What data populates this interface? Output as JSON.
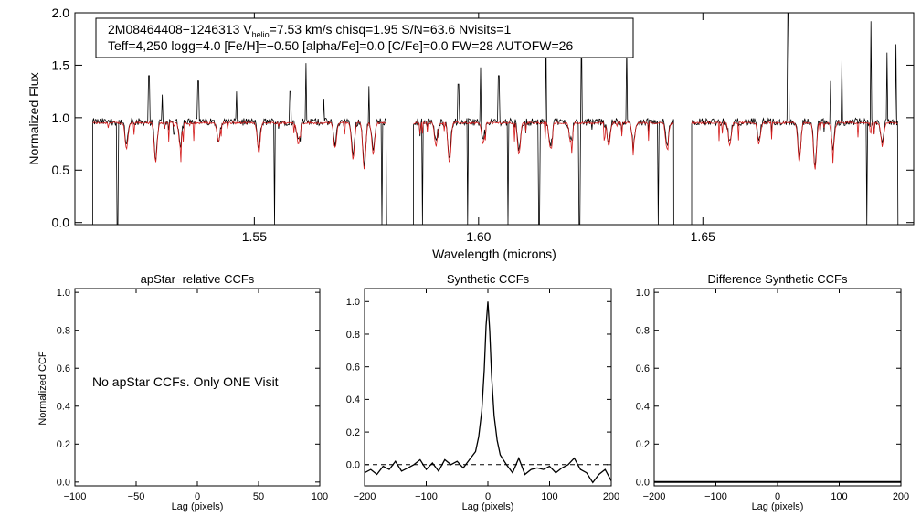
{
  "chart_data": [
    {
      "type": "line",
      "panel": "spectrum",
      "xlabel": "Wavelength (microns)",
      "ylabel": "Normalized Flux",
      "xlim": [
        1.51,
        1.697
      ],
      "ylim": [
        -0.02,
        2.0
      ],
      "xticks": [
        1.55,
        1.6,
        1.65
      ],
      "xtick_labels": [
        "1.55",
        "1.60",
        "1.65"
      ],
      "yticks": [
        0.0,
        0.5,
        1.0,
        1.5,
        2.0
      ],
      "ytick_labels": [
        "0.0",
        "0.5",
        "1.0",
        "1.5",
        "2.0"
      ],
      "info_box": {
        "line1_prefix": "2M08464408−1246313  V",
        "line1_sub": "helio",
        "line1_suffix": "=7.53 km/s  chisq=1.95  S/N=63.6  Nvisits=1",
        "line2": "Teff=4,250 logg=4.0 [Fe/H]=−0.50 [alpha/Fe]=0.0 [C/Fe]=0.0 FW=28 AUTOFW=26"
      },
      "chips": [
        [
          1.514,
          1.5795
        ],
        [
          1.5855,
          1.6435
        ],
        [
          1.6475,
          1.6935
        ]
      ],
      "continuum": 0.96,
      "model_continuum": 0.95,
      "emission_spikes": [
        {
          "x": 1.5265,
          "y": 1.4
        },
        {
          "x": 1.5295,
          "y": 1.22
        },
        {
          "x": 1.5375,
          "y": 1.35
        },
        {
          "x": 1.546,
          "y": 1.25
        },
        {
          "x": 1.558,
          "y": 1.25
        },
        {
          "x": 1.5615,
          "y": 1.52
        },
        {
          "x": 1.5655,
          "y": 1.18
        },
        {
          "x": 1.5755,
          "y": 1.3
        },
        {
          "x": 1.5955,
          "y": 1.32
        },
        {
          "x": 1.6005,
          "y": 1.48
        },
        {
          "x": 1.6045,
          "y": 1.4
        },
        {
          "x": 1.615,
          "y": 1.82
        },
        {
          "x": 1.623,
          "y": 1.9
        },
        {
          "x": 1.633,
          "y": 1.7
        },
        {
          "x": 1.669,
          "y": 2.0
        },
        {
          "x": 1.6785,
          "y": 1.35
        },
        {
          "x": 1.681,
          "y": 1.55
        },
        {
          "x": 1.6875,
          "y": 1.92
        },
        {
          "x": 1.691,
          "y": 1.62
        },
        {
          "x": 1.693,
          "y": 1.7
        }
      ],
      "drop_lines": [
        1.5195,
        1.5545,
        1.5785,
        1.5875,
        1.5975,
        1.6065,
        1.6135,
        1.6225,
        1.64,
        1.6865
      ],
      "absorption_lines": [
        {
          "x": 1.5215,
          "d": 0.25
        },
        {
          "x": 1.528,
          "d": 0.38
        },
        {
          "x": 1.5335,
          "d": 0.22
        },
        {
          "x": 1.542,
          "d": 0.18
        },
        {
          "x": 1.551,
          "d": 0.28
        },
        {
          "x": 1.5598,
          "d": 0.2
        },
        {
          "x": 1.568,
          "d": 0.24
        },
        {
          "x": 1.572,
          "d": 0.35
        },
        {
          "x": 1.5745,
          "d": 0.45
        },
        {
          "x": 1.5765,
          "d": 0.3
        },
        {
          "x": 1.5905,
          "d": 0.22
        },
        {
          "x": 1.5935,
          "d": 0.38
        },
        {
          "x": 1.601,
          "d": 0.2
        },
        {
          "x": 1.609,
          "d": 0.3
        },
        {
          "x": 1.616,
          "d": 0.24
        },
        {
          "x": 1.6205,
          "d": 0.18
        },
        {
          "x": 1.629,
          "d": 0.22
        },
        {
          "x": 1.6345,
          "d": 0.2
        },
        {
          "x": 1.642,
          "d": 0.25
        },
        {
          "x": 1.656,
          "d": 0.22
        },
        {
          "x": 1.6625,
          "d": 0.2
        },
        {
          "x": 1.6715,
          "d": 0.38
        },
        {
          "x": 1.675,
          "d": 0.45
        },
        {
          "x": 1.679,
          "d": 0.25
        },
        {
          "x": 1.69,
          "d": 0.22
        }
      ],
      "series": [
        {
          "name": "observed",
          "color": "#000000"
        },
        {
          "name": "model",
          "color": "#d41c1c"
        }
      ]
    },
    {
      "type": "line",
      "panel": "apstar",
      "title": "apStar−relative CCFs",
      "xlabel": "Lag (pixels)",
      "ylabel": "Normalized CCF",
      "xlim": [
        -100,
        100
      ],
      "ylim": [
        -0.02,
        1.02
      ],
      "xticks": [
        -100,
        -50,
        0,
        50,
        100
      ],
      "xtick_labels": [
        "−100",
        "−50",
        "0",
        "50",
        "100"
      ],
      "yticks": [
        0.0,
        0.2,
        0.4,
        0.6,
        0.8,
        1.0
      ],
      "ytick_labels": [
        "0.0",
        "0.2",
        "0.4",
        "0.6",
        "0.8",
        "1.0"
      ],
      "message": "No apStar CCFs.  Only ONE Visit"
    },
    {
      "type": "line",
      "panel": "synthetic",
      "title": "Synthetic CCFs",
      "xlabel": "Lag (pixels)",
      "xlim": [
        -200,
        200
      ],
      "ylim": [
        -0.13,
        1.08
      ],
      "xticks": [
        -200,
        -100,
        0,
        100,
        200
      ],
      "xtick_labels": [
        "−200",
        "−100",
        "0",
        "100",
        "200"
      ],
      "yticks": [
        0.0,
        0.2,
        0.4,
        0.6,
        0.8,
        1.0
      ],
      "ytick_labels": [
        "0.0",
        "0.2",
        "0.4",
        "0.6",
        "0.8",
        "1.0"
      ],
      "reference_line": 0.0,
      "x": [
        -200,
        -190,
        -180,
        -170,
        -160,
        -150,
        -140,
        -130,
        -120,
        -110,
        -100,
        -90,
        -80,
        -70,
        -60,
        -50,
        -40,
        -30,
        -20,
        -15,
        -10,
        -6,
        -3,
        0,
        3,
        6,
        10,
        15,
        20,
        30,
        40,
        50,
        60,
        70,
        80,
        90,
        100,
        110,
        120,
        130,
        140,
        150,
        160,
        170,
        180,
        190,
        200
      ],
      "y": [
        -0.05,
        -0.03,
        -0.06,
        -0.01,
        -0.03,
        0.02,
        -0.04,
        -0.02,
        0.0,
        0.03,
        -0.03,
        0.01,
        -0.04,
        0.03,
        0.0,
        0.02,
        -0.02,
        0.03,
        0.08,
        0.17,
        0.33,
        0.58,
        0.85,
        1.0,
        0.82,
        0.55,
        0.3,
        0.15,
        0.06,
        0.0,
        -0.05,
        0.04,
        -0.06,
        -0.03,
        -0.02,
        -0.03,
        -0.01,
        -0.05,
        -0.02,
        0.0,
        0.04,
        -0.03,
        -0.05,
        -0.11,
        -0.06,
        -0.03,
        -0.1
      ]
    },
    {
      "type": "line",
      "panel": "difference",
      "title": "Difference Synthetic CCFs",
      "xlabel": "Lag (pixels)",
      "xlim": [
        -200,
        200
      ],
      "ylim": [
        -0.02,
        1.02
      ],
      "xticks": [
        -200,
        -100,
        0,
        100,
        200
      ],
      "xtick_labels": [
        "−200",
        "−100",
        "0",
        "100",
        "200"
      ],
      "yticks": [
        0.0,
        0.2,
        0.4,
        0.6,
        0.8,
        1.0
      ],
      "ytick_labels": [
        "0.0",
        "0.2",
        "0.4",
        "0.6",
        "0.8",
        "1.0"
      ],
      "x": [
        -200,
        200
      ],
      "y": [
        0.0,
        0.0
      ]
    }
  ]
}
